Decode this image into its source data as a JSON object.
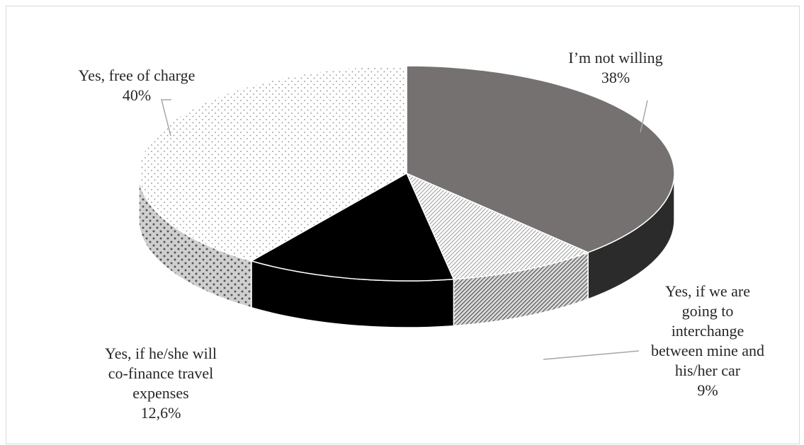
{
  "chart_data": {
    "type": "pie",
    "style": "3d",
    "title": "",
    "start_angle_deg": 90,
    "direction": "clockwise",
    "slices": [
      {
        "name": "I’m not willing",
        "value_label": "38%",
        "value": 38,
        "color": "#767171",
        "pattern": "solid"
      },
      {
        "name": "Yes, if we are going to interchange between mine and his/her car",
        "value_label": "9%",
        "value": 9,
        "color": "#bfbfbf",
        "pattern": "fine-diagonal"
      },
      {
        "name": "Yes, if he/she will co-finance travel expenses",
        "value_label": "12,6%",
        "value": 12.6,
        "color": "#000000",
        "pattern": "solid"
      },
      {
        "name": "Yes, free of charge",
        "value_label": "40%",
        "value": 40,
        "color": "#ffffff",
        "pattern": "dots"
      }
    ],
    "label_lines": [
      [
        "I’m not willing"
      ],
      [
        "Yes, if we are",
        "going to",
        "interchange",
        "between mine and",
        "his/her car"
      ],
      [
        "Yes, if he/she will",
        "co-finance travel",
        "expenses"
      ],
      [
        "Yes, free of charge"
      ]
    ]
  }
}
